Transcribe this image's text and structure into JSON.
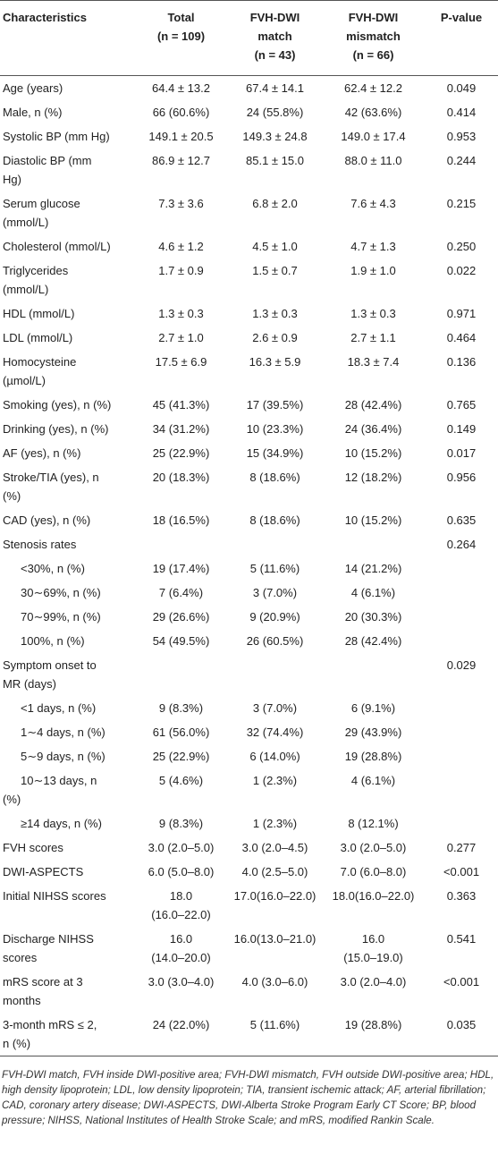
{
  "table": {
    "header": [
      [
        "Characteristics"
      ],
      [
        "Total",
        "(n = 109)"
      ],
      [
        "FVH-DWI",
        "match",
        "(n = 43)"
      ],
      [
        "FVH-DWI",
        "mismatch",
        "(n = 66)"
      ],
      [
        "P-value"
      ]
    ],
    "rows": [
      [
        [
          "Age (years)"
        ],
        [
          "64.4 ± 13.2"
        ],
        [
          "67.4 ± 14.1"
        ],
        [
          "62.4 ± 12.2"
        ],
        [
          "0.049"
        ]
      ],
      [
        [
          "Male, n (%)"
        ],
        [
          "66 (60.6%)"
        ],
        [
          "24 (55.8%)"
        ],
        [
          "42 (63.6%)"
        ],
        [
          "0.414"
        ]
      ],
      [
        [
          "Systolic BP (mm Hg)"
        ],
        [
          "149.1 ± 20.5"
        ],
        [
          "149.3 ± 24.8"
        ],
        [
          "149.0 ± 17.4"
        ],
        [
          "0.953"
        ]
      ],
      [
        [
          "Diastolic BP (mm",
          "Hg)"
        ],
        [
          "86.9 ± 12.7"
        ],
        [
          "85.1 ± 15.0"
        ],
        [
          "88.0 ± 11.0"
        ],
        [
          "0.244"
        ]
      ],
      [
        [
          "Serum glucose",
          "(mmol/L)"
        ],
        [
          "7.3 ± 3.6"
        ],
        [
          "6.8 ± 2.0"
        ],
        [
          "7.6 ± 4.3"
        ],
        [
          "0.215"
        ]
      ],
      [
        [
          "Cholesterol (mmol/L)"
        ],
        [
          "4.6 ± 1.2"
        ],
        [
          "4.5 ± 1.0"
        ],
        [
          "4.7 ± 1.3"
        ],
        [
          "0.250"
        ]
      ],
      [
        [
          "Triglycerides",
          "(mmol/L)"
        ],
        [
          "1.7 ± 0.9"
        ],
        [
          "1.5 ± 0.7"
        ],
        [
          "1.9 ± 1.0"
        ],
        [
          "0.022"
        ]
      ],
      [
        [
          "HDL (mmol/L)"
        ],
        [
          "1.3 ± 0.3"
        ],
        [
          "1.3 ± 0.3"
        ],
        [
          "1.3 ± 0.3"
        ],
        [
          "0.971"
        ]
      ],
      [
        [
          "LDL (mmol/L)"
        ],
        [
          "2.7 ± 1.0"
        ],
        [
          "2.6 ± 0.9"
        ],
        [
          "2.7 ± 1.1"
        ],
        [
          "0.464"
        ]
      ],
      [
        [
          "Homocysteine",
          "(µmol/L)"
        ],
        [
          "17.5 ± 6.9"
        ],
        [
          "16.3 ± 5.9"
        ],
        [
          "18.3 ± 7.4"
        ],
        [
          "0.136"
        ]
      ],
      [
        [
          "Smoking (yes), n (%)"
        ],
        [
          "45 (41.3%)"
        ],
        [
          "17 (39.5%)"
        ],
        [
          "28 (42.4%)"
        ],
        [
          "0.765"
        ]
      ],
      [
        [
          "Drinking (yes), n (%)"
        ],
        [
          "34 (31.2%)"
        ],
        [
          "10 (23.3%)"
        ],
        [
          "24 (36.4%)"
        ],
        [
          "0.149"
        ]
      ],
      [
        [
          "AF (yes), n (%)"
        ],
        [
          "25 (22.9%)"
        ],
        [
          "15 (34.9%)"
        ],
        [
          "10 (15.2%)"
        ],
        [
          "0.017"
        ]
      ],
      [
        [
          "Stroke/TIA (yes), n",
          "(%)"
        ],
        [
          "20 (18.3%)"
        ],
        [
          "8 (18.6%)"
        ],
        [
          "12 (18.2%)"
        ],
        [
          "0.956"
        ]
      ],
      [
        [
          "CAD (yes), n (%)"
        ],
        [
          "18 (16.5%)"
        ],
        [
          "8 (18.6%)"
        ],
        [
          "10 (15.2%)"
        ],
        [
          "0.635"
        ]
      ],
      [
        [
          "Stenosis rates"
        ],
        null,
        null,
        null,
        [
          "0.264"
        ]
      ],
      [
        [
          "<30%, n (%)"
        ],
        [
          "19 (17.4%)"
        ],
        [
          "5 (11.6%)"
        ],
        [
          "14 (21.2%)"
        ],
        null
      ],
      [
        [
          "30∼69%, n (%)"
        ],
        [
          "7 (6.4%)"
        ],
        [
          "3 (7.0%)"
        ],
        [
          "4 (6.1%)"
        ],
        null
      ],
      [
        [
          "70∼99%, n (%)"
        ],
        [
          "29 (26.6%)"
        ],
        [
          "9 (20.9%)"
        ],
        [
          "20 (30.3%)"
        ],
        null
      ],
      [
        [
          "100%, n (%)"
        ],
        [
          "54 (49.5%)"
        ],
        [
          "26 (60.5%)"
        ],
        [
          "28 (42.4%)"
        ],
        null
      ],
      [
        [
          "Symptom onset to",
          "MR (days)"
        ],
        null,
        null,
        null,
        [
          "0.029"
        ]
      ],
      [
        [
          "<1 days, n (%)"
        ],
        [
          "9 (8.3%)"
        ],
        [
          "3 (7.0%)"
        ],
        [
          "6 (9.1%)"
        ],
        null
      ],
      [
        [
          "1∼4 days, n (%)"
        ],
        [
          "61 (56.0%)"
        ],
        [
          "32 (74.4%)"
        ],
        [
          "29 (43.9%)"
        ],
        null
      ],
      [
        [
          "5∼9 days, n (%)"
        ],
        [
          "25 (22.9%)"
        ],
        [
          "6 (14.0%)"
        ],
        [
          "19 (28.8%)"
        ],
        null
      ],
      [
        [
          "10∼13 days, n",
          "(%)"
        ],
        [
          "5 (4.6%)"
        ],
        [
          "1 (2.3%)"
        ],
        [
          "4 (6.1%)"
        ],
        null
      ],
      [
        [
          "≥14 days, n (%)"
        ],
        [
          "9 (8.3%)"
        ],
        [
          "1 (2.3%)"
        ],
        [
          "8 (12.1%)"
        ],
        null
      ],
      [
        [
          "FVH scores"
        ],
        [
          "3.0 (2.0–5.0)"
        ],
        [
          "3.0 (2.0–4.5)"
        ],
        [
          "3.0 (2.0–5.0)"
        ],
        [
          "0.277"
        ]
      ],
      [
        [
          "DWI-ASPECTS"
        ],
        [
          "6.0 (5.0–8.0)"
        ],
        [
          "4.0 (2.5–5.0)"
        ],
        [
          "7.0 (6.0–8.0)"
        ],
        [
          "<0.001"
        ]
      ],
      [
        [
          "Initial NIHSS scores"
        ],
        [
          "18.0",
          "(16.0–22.0)"
        ],
        [
          "17.0(16.0–22.0)"
        ],
        [
          "18.0(16.0–22.0)"
        ],
        [
          "0.363"
        ]
      ],
      [
        [
          "Discharge NIHSS",
          "scores"
        ],
        [
          "16.0",
          "(14.0–20.0)"
        ],
        [
          "16.0(13.0–21.0)"
        ],
        [
          "16.0",
          "(15.0–19.0)"
        ],
        [
          "0.541"
        ]
      ],
      [
        [
          "mRS score at 3",
          "months"
        ],
        [
          "3.0 (3.0–4.0)"
        ],
        [
          "4.0 (3.0–6.0)"
        ],
        [
          "3.0 (2.0–4.0)"
        ],
        [
          "<0.001"
        ]
      ],
      [
        [
          "3-month mRS ≤ 2,",
          "n (%)"
        ],
        [
          "24 (22.0%)"
        ],
        [
          "5 (11.6%)"
        ],
        [
          "19 (28.8%)"
        ],
        [
          "0.035"
        ]
      ]
    ],
    "footnote": "FVH-DWI match, FVH inside DWI-positive area; FVH-DWI mismatch, FVH outside DWI-positive area; HDL, high density lipoprotein; LDL, low density lipoprotein; TIA, transient ischemic attack; AF, arterial fibrillation; CAD, coronary artery disease; DWI-ASPECTS, DWI-Alberta Stroke Program Early CT Score; BP, blood pressure; NIHSS, National Institutes of Health Stroke Scale; and mRS, modified Rankin Scale."
  }
}
